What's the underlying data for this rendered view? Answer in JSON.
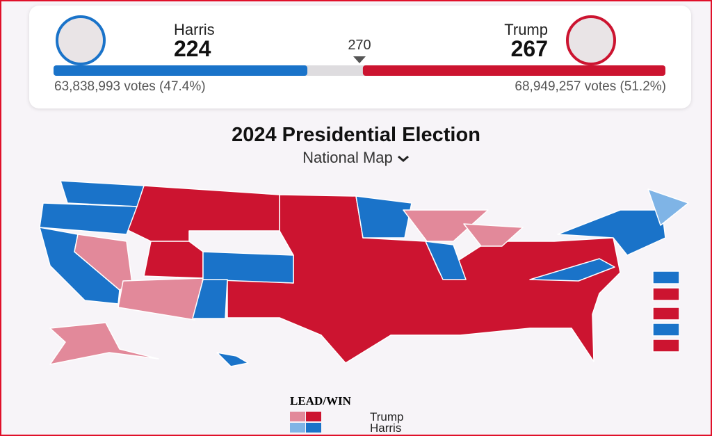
{
  "candidates": [
    {
      "name": "Harris",
      "electoral_votes": 224,
      "votes_text": "63,838,993 votes (47.4%)"
    },
    {
      "name": "Trump",
      "electoral_votes": 267,
      "votes_text": "68,949,257 votes (51.2%)"
    }
  ],
  "threshold": 270,
  "title": "2024 Presidential Election",
  "subtitle": "National Map",
  "legend": {
    "title": "LEAD/WIN",
    "items": [
      "Trump",
      "Harris"
    ]
  }
}
